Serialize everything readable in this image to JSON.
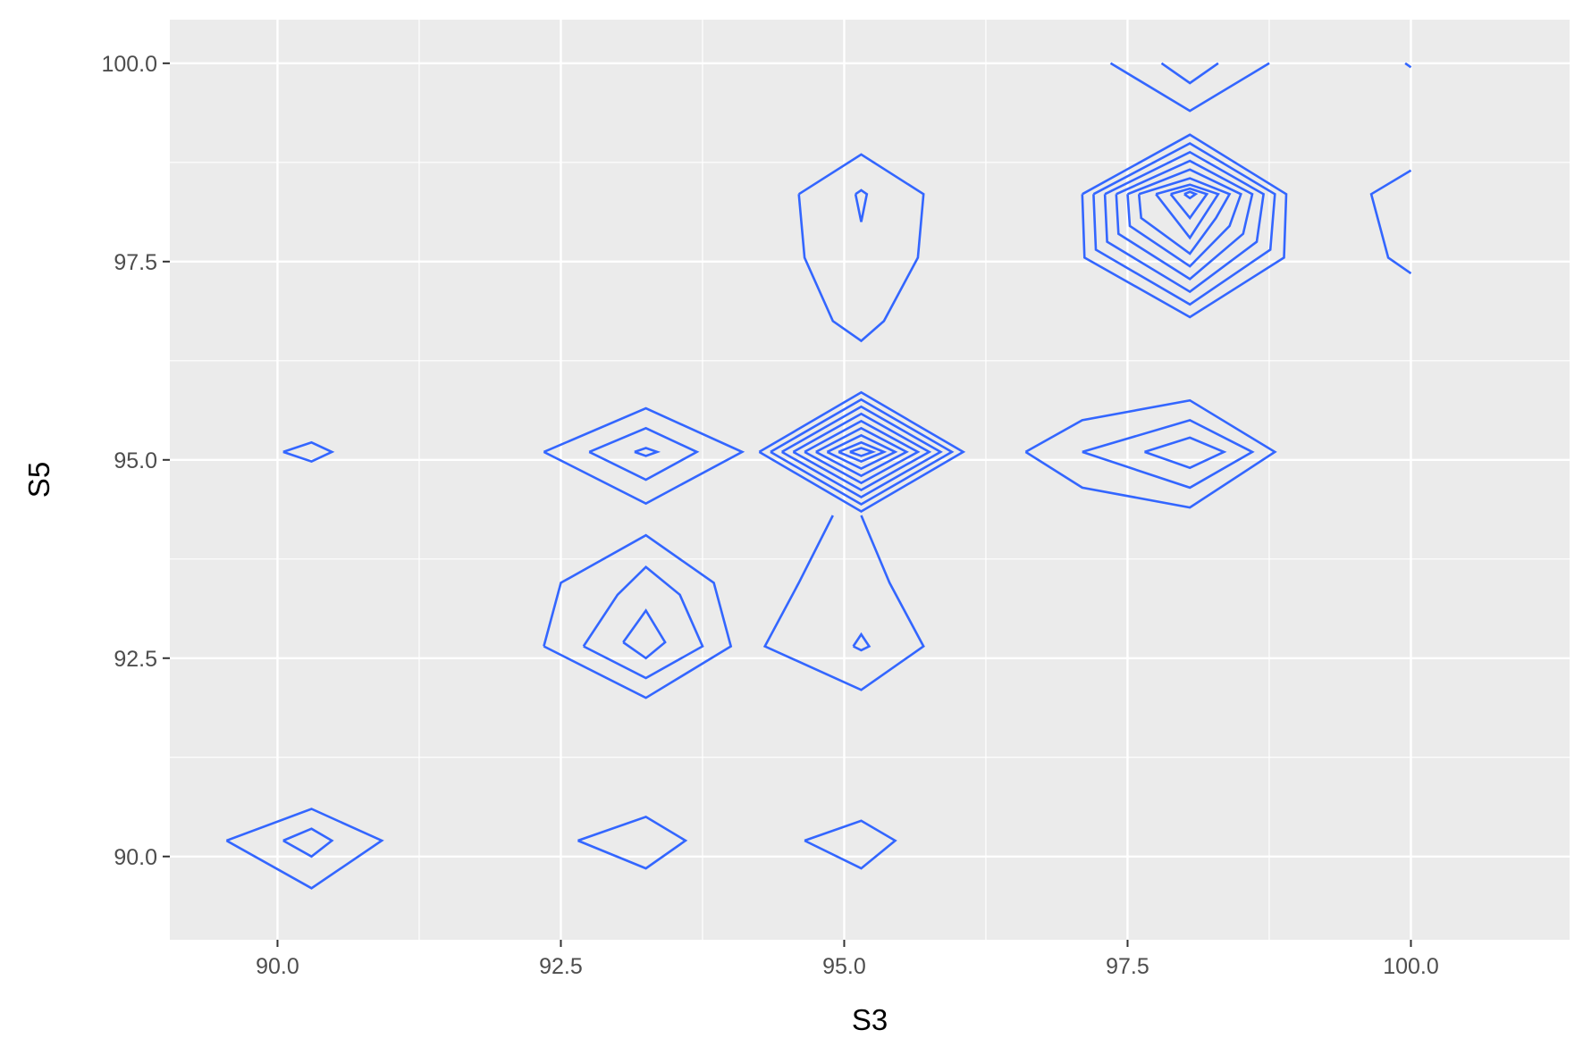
{
  "chart_data": {
    "type": "contour",
    "title": "",
    "xlabel": "S3",
    "ylabel": "S5",
    "xlim": [
      89.05,
      101.4
    ],
    "ylim": [
      88.95,
      100.55
    ],
    "x_ticks": [
      "90.0",
      "92.5",
      "95.0",
      "97.5",
      "100.0"
    ],
    "x_tick_values": [
      90.0,
      92.5,
      95.0,
      97.5,
      100.0
    ],
    "y_ticks": [
      "90.0",
      "92.5",
      "95.0",
      "97.5",
      "100.0"
    ],
    "y_tick_values": [
      90.0,
      92.5,
      95.0,
      97.5,
      100.0
    ],
    "grid": true,
    "line_color": "#3366FF",
    "panel_background": "#EBEBEB",
    "grid_color": "#FFFFFF",
    "contour_lines": [
      {
        "group": "x90.3_y90.2_outer",
        "points": [
          [
            89.55,
            90.2
          ],
          [
            90.3,
            90.6
          ],
          [
            90.92,
            90.2
          ],
          [
            90.3,
            89.6
          ],
          [
            89.55,
            90.2
          ]
        ]
      },
      {
        "group": "x90.3_y90.2_inner",
        "points": [
          [
            90.05,
            90.2
          ],
          [
            90.3,
            90.35
          ],
          [
            90.48,
            90.2
          ],
          [
            90.3,
            90.0
          ],
          [
            90.05,
            90.2
          ]
        ]
      },
      {
        "group": "x90.3_y95.1",
        "points": [
          [
            90.05,
            95.1
          ],
          [
            90.3,
            95.22
          ],
          [
            90.48,
            95.1
          ],
          [
            90.3,
            94.98
          ],
          [
            90.05,
            95.1
          ]
        ]
      },
      {
        "group": "x93.25_y90.2",
        "points": [
          [
            92.65,
            90.2
          ],
          [
            93.25,
            90.5
          ],
          [
            93.6,
            90.2
          ],
          [
            93.25,
            89.85
          ],
          [
            92.65,
            90.2
          ]
        ]
      },
      {
        "group": "x95.15_y90.2",
        "points": [
          [
            94.65,
            90.2
          ],
          [
            95.15,
            90.45
          ],
          [
            95.45,
            90.2
          ],
          [
            95.15,
            89.85
          ],
          [
            94.65,
            90.2
          ]
        ]
      },
      {
        "group": "x93.25_y92.6_outer",
        "points": [
          [
            92.35,
            92.65
          ],
          [
            92.5,
            93.45
          ],
          [
            93.25,
            94.05
          ],
          [
            93.85,
            93.45
          ],
          [
            94.0,
            92.65
          ],
          [
            93.25,
            92.0
          ],
          [
            92.35,
            92.65
          ]
        ]
      },
      {
        "group": "x93.25_y92.6_mid",
        "points": [
          [
            92.7,
            92.65
          ],
          [
            93.0,
            93.3
          ],
          [
            93.25,
            93.65
          ],
          [
            93.55,
            93.3
          ],
          [
            93.75,
            92.65
          ],
          [
            93.25,
            92.25
          ],
          [
            92.7,
            92.65
          ]
        ]
      },
      {
        "group": "x93.25_y92.6_inner",
        "points": [
          [
            93.05,
            92.7
          ],
          [
            93.25,
            93.1
          ],
          [
            93.42,
            92.7
          ],
          [
            93.25,
            92.5
          ],
          [
            93.05,
            92.7
          ]
        ]
      },
      {
        "group": "x95.15_y93.0_outer",
        "points": [
          [
            94.9,
            94.3
          ],
          [
            94.6,
            93.45
          ],
          [
            94.3,
            92.65
          ],
          [
            95.15,
            92.1
          ],
          [
            95.7,
            92.65
          ],
          [
            95.4,
            93.45
          ],
          [
            95.15,
            94.3
          ]
        ]
      },
      {
        "group": "x95.15_y92.7_inner",
        "points": [
          [
            95.08,
            92.65
          ],
          [
            95.15,
            92.8
          ],
          [
            95.22,
            92.65
          ],
          [
            95.15,
            92.6
          ],
          [
            95.08,
            92.65
          ]
        ]
      },
      {
        "group": "x93.25_y95.1_outer",
        "points": [
          [
            92.35,
            95.1
          ],
          [
            93.25,
            95.65
          ],
          [
            94.1,
            95.1
          ],
          [
            93.25,
            94.45
          ],
          [
            92.35,
            95.1
          ]
        ]
      },
      {
        "group": "x93.25_y95.1_mid",
        "points": [
          [
            92.75,
            95.1
          ],
          [
            93.25,
            95.4
          ],
          [
            93.7,
            95.1
          ],
          [
            93.25,
            94.75
          ],
          [
            92.75,
            95.1
          ]
        ]
      },
      {
        "group": "x93.25_y95.1_inner",
        "points": [
          [
            93.15,
            95.1
          ],
          [
            93.25,
            95.15
          ],
          [
            93.35,
            95.1
          ],
          [
            93.25,
            95.05
          ],
          [
            93.15,
            95.1
          ]
        ]
      },
      {
        "group": "x95.15_y95.1_l1",
        "points": [
          [
            94.25,
            95.1
          ],
          [
            95.15,
            95.85
          ],
          [
            96.05,
            95.1
          ],
          [
            95.15,
            94.35
          ],
          [
            94.25,
            95.1
          ]
        ]
      },
      {
        "group": "x95.15_y95.1_l2",
        "points": [
          [
            94.35,
            95.1
          ],
          [
            95.15,
            95.76
          ],
          [
            95.95,
            95.1
          ],
          [
            95.15,
            94.44
          ],
          [
            94.35,
            95.1
          ]
        ]
      },
      {
        "group": "x95.15_y95.1_l3",
        "points": [
          [
            94.45,
            95.1
          ],
          [
            95.15,
            95.67
          ],
          [
            95.85,
            95.1
          ],
          [
            95.15,
            94.53
          ],
          [
            94.45,
            95.1
          ]
        ]
      },
      {
        "group": "x95.15_y95.1_l4",
        "points": [
          [
            94.55,
            95.1
          ],
          [
            95.15,
            95.58
          ],
          [
            95.75,
            95.1
          ],
          [
            95.15,
            94.62
          ],
          [
            94.55,
            95.1
          ]
        ]
      },
      {
        "group": "x95.15_y95.1_l5",
        "points": [
          [
            94.65,
            95.1
          ],
          [
            95.15,
            95.49
          ],
          [
            95.65,
            95.1
          ],
          [
            95.15,
            94.71
          ],
          [
            94.65,
            95.1
          ]
        ]
      },
      {
        "group": "x95.15_y95.1_l6",
        "points": [
          [
            94.75,
            95.1
          ],
          [
            95.15,
            95.4
          ],
          [
            95.55,
            95.1
          ],
          [
            95.15,
            94.8
          ],
          [
            94.75,
            95.1
          ]
        ]
      },
      {
        "group": "x95.15_y95.1_l7",
        "points": [
          [
            94.85,
            95.1
          ],
          [
            95.15,
            95.31
          ],
          [
            95.45,
            95.1
          ],
          [
            95.15,
            94.89
          ],
          [
            94.85,
            95.1
          ]
        ]
      },
      {
        "group": "x95.15_y95.1_l8",
        "points": [
          [
            94.95,
            95.1
          ],
          [
            95.15,
            95.22
          ],
          [
            95.35,
            95.1
          ],
          [
            95.15,
            94.98
          ],
          [
            94.95,
            95.1
          ]
        ]
      },
      {
        "group": "x95.15_y95.1_l9",
        "points": [
          [
            95.05,
            95.1
          ],
          [
            95.15,
            95.15
          ],
          [
            95.25,
            95.1
          ],
          [
            95.15,
            95.05
          ],
          [
            95.05,
            95.1
          ]
        ]
      },
      {
        "group": "x98.05_y95.1_outer",
        "points": [
          [
            96.6,
            95.1
          ],
          [
            97.1,
            95.5
          ],
          [
            98.05,
            95.75
          ],
          [
            98.8,
            95.1
          ],
          [
            98.05,
            94.4
          ],
          [
            97.1,
            94.65
          ],
          [
            96.6,
            95.1
          ]
        ]
      },
      {
        "group": "x98.05_y95.1_mid",
        "points": [
          [
            97.1,
            95.1
          ],
          [
            98.05,
            95.5
          ],
          [
            98.6,
            95.1
          ],
          [
            98.05,
            94.65
          ],
          [
            97.1,
            95.1
          ]
        ]
      },
      {
        "group": "x98.05_y95.1_inner",
        "points": [
          [
            97.65,
            95.1
          ],
          [
            98.05,
            95.28
          ],
          [
            98.35,
            95.1
          ],
          [
            98.05,
            94.9
          ],
          [
            97.65,
            95.1
          ]
        ]
      },
      {
        "group": "x95.15_y97.8_outer",
        "points": [
          [
            94.6,
            98.35
          ],
          [
            95.15,
            98.85
          ],
          [
            95.7,
            98.35
          ],
          [
            95.65,
            97.55
          ],
          [
            95.35,
            96.75
          ],
          [
            95.15,
            96.5
          ],
          [
            94.9,
            96.75
          ],
          [
            94.65,
            97.55
          ],
          [
            94.6,
            98.35
          ]
        ]
      },
      {
        "group": "x95.15_y98.2_inner",
        "points": [
          [
            95.1,
            98.35
          ],
          [
            95.15,
            98.4
          ],
          [
            95.2,
            98.35
          ],
          [
            95.15,
            98.0
          ],
          [
            95.1,
            98.35
          ]
        ]
      },
      {
        "group": "x98.05_y98.0_l1",
        "points": [
          [
            97.1,
            98.35
          ],
          [
            98.05,
            99.1
          ],
          [
            98.9,
            98.35
          ],
          [
            98.88,
            97.55
          ],
          [
            98.05,
            96.8
          ],
          [
            97.12,
            97.55
          ],
          [
            97.1,
            98.35
          ]
        ]
      },
      {
        "group": "x98.05_y98.0_l2",
        "points": [
          [
            97.2,
            98.35
          ],
          [
            98.05,
            98.99
          ],
          [
            98.8,
            98.35
          ],
          [
            98.76,
            97.65
          ],
          [
            98.05,
            96.96
          ],
          [
            97.22,
            97.65
          ],
          [
            97.2,
            98.35
          ]
        ]
      },
      {
        "group": "x98.05_y98.0_l3",
        "points": [
          [
            97.3,
            98.35
          ],
          [
            98.05,
            98.88
          ],
          [
            98.7,
            98.35
          ],
          [
            98.64,
            97.75
          ],
          [
            98.05,
            97.12
          ],
          [
            97.32,
            97.75
          ],
          [
            97.3,
            98.35
          ]
        ]
      },
      {
        "group": "x98.05_y98.0_l4",
        "points": [
          [
            97.4,
            98.35
          ],
          [
            98.05,
            98.77
          ],
          [
            98.6,
            98.35
          ],
          [
            98.52,
            97.85
          ],
          [
            98.05,
            97.28
          ],
          [
            97.42,
            97.85
          ],
          [
            97.4,
            98.35
          ]
        ]
      },
      {
        "group": "x98.05_y98.0_l5",
        "points": [
          [
            97.5,
            98.35
          ],
          [
            98.05,
            98.66
          ],
          [
            98.5,
            98.35
          ],
          [
            98.4,
            97.95
          ],
          [
            98.05,
            97.44
          ],
          [
            97.52,
            97.95
          ],
          [
            97.5,
            98.35
          ]
        ]
      },
      {
        "group": "x98.05_y98.0_l6",
        "points": [
          [
            97.6,
            98.35
          ],
          [
            98.05,
            98.55
          ],
          [
            98.4,
            98.35
          ],
          [
            98.28,
            98.05
          ],
          [
            98.05,
            97.6
          ],
          [
            97.62,
            98.05
          ],
          [
            97.6,
            98.35
          ]
        ]
      },
      {
        "group": "x98.05_y98.0_l7",
        "points": [
          [
            97.75,
            98.35
          ],
          [
            98.05,
            98.47
          ],
          [
            98.3,
            98.35
          ],
          [
            98.05,
            97.8
          ],
          [
            97.75,
            98.35
          ]
        ]
      },
      {
        "group": "x98.05_y98.0_l8",
        "points": [
          [
            97.88,
            98.35
          ],
          [
            98.05,
            98.42
          ],
          [
            98.2,
            98.35
          ],
          [
            98.05,
            98.05
          ],
          [
            97.88,
            98.35
          ]
        ]
      },
      {
        "group": "x98.05_y98.0_l9",
        "points": [
          [
            98.0,
            98.35
          ],
          [
            98.05,
            98.38
          ],
          [
            98.1,
            98.35
          ],
          [
            98.05,
            98.3
          ],
          [
            98.0,
            98.35
          ]
        ]
      },
      {
        "group": "x98.05_y100.0_outer",
        "points": [
          [
            97.35,
            100.0
          ],
          [
            98.05,
            99.4
          ],
          [
            98.75,
            100.0
          ]
        ]
      },
      {
        "group": "x98.05_y100.0_inner",
        "points": [
          [
            97.8,
            100.0
          ],
          [
            98.05,
            99.75
          ],
          [
            98.3,
            100.0
          ]
        ]
      },
      {
        "group": "x100.0_y98.0_edge",
        "points": [
          [
            100.0,
            98.65
          ],
          [
            99.65,
            98.35
          ],
          [
            99.8,
            97.55
          ],
          [
            100.0,
            97.35
          ]
        ]
      },
      {
        "group": "x100.0_y100.0_edge",
        "points": [
          [
            99.95,
            100.0
          ],
          [
            100.0,
            99.95
          ]
        ]
      }
    ]
  }
}
